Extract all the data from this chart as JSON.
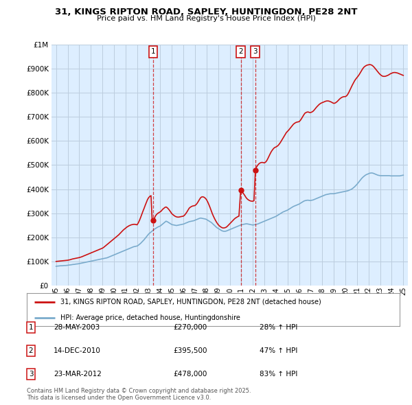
{
  "title": "31, KINGS RIPTON ROAD, SAPLEY, HUNTINGDON, PE28 2NT",
  "subtitle": "Price paid vs. HM Land Registry's House Price Index (HPI)",
  "legend_line1": "31, KINGS RIPTON ROAD, SAPLEY, HUNTINGDON, PE28 2NT (detached house)",
  "legend_line2": "HPI: Average price, detached house, Huntingdonshire",
  "footer": "Contains HM Land Registry data © Crown copyright and database right 2025.\nThis data is licensed under the Open Government Licence v3.0.",
  "sale_events": [
    {
      "num": 1,
      "date": "28-MAY-2003",
      "price": 270000,
      "pct": "28% ↑ HPI",
      "x": 2003.38
    },
    {
      "num": 2,
      "date": "14-DEC-2010",
      "price": 395500,
      "pct": "47% ↑ HPI",
      "x": 2010.95
    },
    {
      "num": 3,
      "date": "23-MAR-2012",
      "price": 478000,
      "pct": "83% ↑ HPI",
      "x": 2012.22
    }
  ],
  "hpi_color": "#7aabcc",
  "price_color": "#cc1111",
  "marker_color": "#cc1111",
  "background_color": "#ffffff",
  "chart_bg_color": "#ddeeff",
  "grid_color": "#bbccdd",
  "ylim": [
    0,
    1000000
  ],
  "xlim": [
    1994.6,
    2025.4
  ],
  "hpi_x": [
    1995.0,
    1995.1,
    1995.2,
    1995.3,
    1995.4,
    1995.5,
    1995.6,
    1995.7,
    1995.8,
    1995.9,
    1996.0,
    1996.1,
    1996.2,
    1996.3,
    1996.4,
    1996.5,
    1996.6,
    1996.7,
    1996.8,
    1996.9,
    1997.0,
    1997.1,
    1997.2,
    1997.3,
    1997.4,
    1997.5,
    1997.6,
    1997.7,
    1997.8,
    1997.9,
    1998.0,
    1998.1,
    1998.2,
    1998.3,
    1998.4,
    1998.5,
    1998.6,
    1998.7,
    1998.8,
    1998.9,
    1999.0,
    1999.1,
    1999.2,
    1999.3,
    1999.4,
    1999.5,
    1999.6,
    1999.7,
    1999.8,
    1999.9,
    2000.0,
    2000.1,
    2000.2,
    2000.3,
    2000.4,
    2000.5,
    2000.6,
    2000.7,
    2000.8,
    2000.9,
    2001.0,
    2001.1,
    2001.2,
    2001.3,
    2001.4,
    2001.5,
    2001.6,
    2001.7,
    2001.8,
    2001.9,
    2002.0,
    2002.1,
    2002.2,
    2002.3,
    2002.4,
    2002.5,
    2002.6,
    2002.7,
    2002.8,
    2002.9,
    2003.0,
    2003.1,
    2003.2,
    2003.3,
    2003.4,
    2003.5,
    2003.6,
    2003.7,
    2003.8,
    2003.9,
    2004.0,
    2004.1,
    2004.2,
    2004.3,
    2004.4,
    2004.5,
    2004.6,
    2004.7,
    2004.8,
    2004.9,
    2005.0,
    2005.1,
    2005.2,
    2005.3,
    2005.4,
    2005.5,
    2005.6,
    2005.7,
    2005.8,
    2005.9,
    2006.0,
    2006.1,
    2006.2,
    2006.3,
    2006.4,
    2006.5,
    2006.6,
    2006.7,
    2006.8,
    2006.9,
    2007.0,
    2007.1,
    2007.2,
    2007.3,
    2007.4,
    2007.5,
    2007.6,
    2007.7,
    2007.8,
    2007.9,
    2008.0,
    2008.1,
    2008.2,
    2008.3,
    2008.4,
    2008.5,
    2008.6,
    2008.7,
    2008.8,
    2008.9,
    2009.0,
    2009.1,
    2009.2,
    2009.3,
    2009.4,
    2009.5,
    2009.6,
    2009.7,
    2009.8,
    2009.9,
    2010.0,
    2010.1,
    2010.2,
    2010.3,
    2010.4,
    2010.5,
    2010.6,
    2010.7,
    2010.8,
    2010.9,
    2011.0,
    2011.1,
    2011.2,
    2011.3,
    2011.4,
    2011.5,
    2011.6,
    2011.7,
    2011.8,
    2011.9,
    2012.0,
    2012.1,
    2012.2,
    2012.3,
    2012.4,
    2012.5,
    2012.6,
    2012.7,
    2012.8,
    2012.9,
    2013.0,
    2013.1,
    2013.2,
    2013.3,
    2013.4,
    2013.5,
    2013.6,
    2013.7,
    2013.8,
    2013.9,
    2014.0,
    2014.1,
    2014.2,
    2014.3,
    2014.4,
    2014.5,
    2014.6,
    2014.7,
    2014.8,
    2014.9,
    2015.0,
    2015.1,
    2015.2,
    2015.3,
    2015.4,
    2015.5,
    2015.6,
    2015.7,
    2015.8,
    2015.9,
    2016.0,
    2016.1,
    2016.2,
    2016.3,
    2016.4,
    2016.5,
    2016.6,
    2016.7,
    2016.8,
    2016.9,
    2017.0,
    2017.1,
    2017.2,
    2017.3,
    2017.4,
    2017.5,
    2017.6,
    2017.7,
    2017.8,
    2017.9,
    2018.0,
    2018.1,
    2018.2,
    2018.3,
    2018.4,
    2018.5,
    2018.6,
    2018.7,
    2018.8,
    2018.9,
    2019.0,
    2019.1,
    2019.2,
    2019.3,
    2019.4,
    2019.5,
    2019.6,
    2019.7,
    2019.8,
    2019.9,
    2020.0,
    2020.1,
    2020.2,
    2020.3,
    2020.4,
    2020.5,
    2020.6,
    2020.7,
    2020.8,
    2020.9,
    2021.0,
    2021.1,
    2021.2,
    2021.3,
    2021.4,
    2021.5,
    2021.6,
    2021.7,
    2021.8,
    2021.9,
    2022.0,
    2022.1,
    2022.2,
    2022.3,
    2022.4,
    2022.5,
    2022.6,
    2022.7,
    2022.8,
    2022.9,
    2023.0,
    2023.1,
    2023.2,
    2023.3,
    2023.4,
    2023.5,
    2023.6,
    2023.7,
    2023.8,
    2023.9,
    2024.0,
    2024.1,
    2024.2,
    2024.3,
    2024.4,
    2024.5,
    2024.6,
    2024.7,
    2024.8,
    2024.9,
    2025.0
  ],
  "hpi_y": [
    80000,
    80500,
    81000,
    81500,
    82000,
    82000,
    82500,
    83000,
    83000,
    83500,
    84000,
    85000,
    85500,
    86000,
    87000,
    87500,
    88000,
    89000,
    89500,
    90000,
    91000,
    92000,
    93000,
    94000,
    95000,
    96000,
    97000,
    98000,
    99000,
    100000,
    101000,
    102000,
    103000,
    104000,
    105000,
    106000,
    107000,
    108000,
    109000,
    110000,
    111000,
    112000,
    113000,
    114000,
    115000,
    117000,
    119000,
    121000,
    123000,
    125000,
    127000,
    129000,
    131000,
    133000,
    135000,
    137000,
    139000,
    141000,
    143000,
    145000,
    147000,
    149000,
    151000,
    153000,
    155000,
    157000,
    159000,
    161000,
    162000,
    163000,
    164000,
    167000,
    171000,
    175000,
    180000,
    185000,
    190000,
    196000,
    202000,
    208000,
    214000,
    218000,
    222000,
    226000,
    230000,
    234000,
    237000,
    240000,
    243000,
    245000,
    247000,
    251000,
    255000,
    259000,
    263000,
    267000,
    265000,
    262000,
    259000,
    256000,
    253000,
    252000,
    251000,
    250000,
    249000,
    250000,
    251000,
    252000,
    253000,
    254000,
    255000,
    257000,
    259000,
    261000,
    263000,
    265000,
    266000,
    267000,
    268000,
    269000,
    271000,
    273000,
    275000,
    277000,
    279000,
    280000,
    279000,
    278000,
    277000,
    276000,
    274000,
    271000,
    268000,
    265000,
    262000,
    258000,
    253000,
    249000,
    244000,
    240000,
    237000,
    234000,
    231000,
    228000,
    226000,
    225000,
    225000,
    226000,
    228000,
    230000,
    232000,
    234000,
    236000,
    238000,
    240000,
    242000,
    244000,
    246000,
    248000,
    250000,
    252000,
    253000,
    254000,
    255000,
    256000,
    256000,
    255000,
    254000,
    253000,
    252000,
    251000,
    252000,
    253000,
    254000,
    255000,
    257000,
    259000,
    261000,
    263000,
    265000,
    267000,
    269000,
    271000,
    273000,
    275000,
    277000,
    279000,
    281000,
    283000,
    285000,
    287000,
    290000,
    293000,
    296000,
    299000,
    302000,
    305000,
    307000,
    309000,
    311000,
    313000,
    316000,
    319000,
    322000,
    325000,
    328000,
    330000,
    332000,
    334000,
    336000,
    338000,
    341000,
    344000,
    347000,
    350000,
    352000,
    353000,
    354000,
    354000,
    353000,
    353000,
    354000,
    355000,
    357000,
    359000,
    361000,
    363000,
    365000,
    367000,
    369000,
    371000,
    373000,
    375000,
    377000,
    378000,
    379000,
    380000,
    381000,
    381000,
    381000,
    381000,
    382000,
    383000,
    384000,
    385000,
    386000,
    387000,
    388000,
    389000,
    390000,
    391000,
    392000,
    393000,
    395000,
    397000,
    399000,
    402000,
    406000,
    410000,
    415000,
    420000,
    426000,
    432000,
    438000,
    444000,
    449000,
    453000,
    457000,
    460000,
    462000,
    464000,
    466000,
    467000,
    467000,
    466000,
    464000,
    462000,
    460000,
    458000,
    457000,
    456000,
    456000,
    456000,
    456000,
    456000,
    456000,
    456000,
    456000,
    456000,
    455000,
    455000,
    455000,
    455000,
    455000,
    455000,
    455000,
    455000,
    455000,
    456000,
    457000,
    458000
  ],
  "red_x": [
    1995.0,
    1995.1,
    1995.2,
    1995.3,
    1995.4,
    1995.5,
    1995.6,
    1995.7,
    1995.8,
    1995.9,
    1996.0,
    1996.1,
    1996.2,
    1996.3,
    1996.4,
    1996.5,
    1996.6,
    1996.7,
    1996.8,
    1996.9,
    1997.0,
    1997.1,
    1997.2,
    1997.3,
    1997.4,
    1997.5,
    1997.6,
    1997.7,
    1997.8,
    1997.9,
    1998.0,
    1998.1,
    1998.2,
    1998.3,
    1998.4,
    1998.5,
    1998.6,
    1998.7,
    1998.8,
    1998.9,
    1999.0,
    1999.1,
    1999.2,
    1999.3,
    1999.4,
    1999.5,
    1999.6,
    1999.7,
    1999.8,
    1999.9,
    2000.0,
    2000.1,
    2000.2,
    2000.3,
    2000.4,
    2000.5,
    2000.6,
    2000.7,
    2000.8,
    2000.9,
    2001.0,
    2001.1,
    2001.2,
    2001.3,
    2001.4,
    2001.5,
    2001.6,
    2001.7,
    2001.8,
    2001.9,
    2002.0,
    2002.1,
    2002.2,
    2002.3,
    2002.4,
    2002.5,
    2002.6,
    2002.7,
    2002.8,
    2002.9,
    2003.0,
    2003.1,
    2003.2,
    2003.3,
    2003.38,
    2003.5,
    2003.6,
    2003.7,
    2003.8,
    2003.9,
    2004.0,
    2004.1,
    2004.2,
    2004.3,
    2004.4,
    2004.5,
    2004.6,
    2004.7,
    2004.8,
    2004.9,
    2005.0,
    2005.1,
    2005.2,
    2005.3,
    2005.4,
    2005.5,
    2005.6,
    2005.7,
    2005.8,
    2005.9,
    2006.0,
    2006.1,
    2006.2,
    2006.3,
    2006.4,
    2006.5,
    2006.6,
    2006.7,
    2006.8,
    2006.9,
    2007.0,
    2007.1,
    2007.2,
    2007.3,
    2007.4,
    2007.5,
    2007.6,
    2007.7,
    2007.8,
    2007.9,
    2008.0,
    2008.1,
    2008.2,
    2008.3,
    2008.4,
    2008.5,
    2008.6,
    2008.7,
    2008.8,
    2008.9,
    2009.0,
    2009.1,
    2009.2,
    2009.3,
    2009.4,
    2009.5,
    2009.6,
    2009.7,
    2009.8,
    2009.9,
    2010.0,
    2010.1,
    2010.2,
    2010.3,
    2010.4,
    2010.5,
    2010.6,
    2010.7,
    2010.8,
    2010.95,
    2011.0,
    2011.1,
    2011.2,
    2011.3,
    2011.4,
    2011.5,
    2011.6,
    2011.7,
    2011.8,
    2011.9,
    2012.0,
    2012.1,
    2012.22,
    2012.3,
    2012.4,
    2012.5,
    2012.6,
    2012.7,
    2012.8,
    2012.9,
    2013.0,
    2013.1,
    2013.2,
    2013.3,
    2013.4,
    2013.5,
    2013.6,
    2013.7,
    2013.8,
    2013.9,
    2014.0,
    2014.1,
    2014.2,
    2014.3,
    2014.4,
    2014.5,
    2014.6,
    2014.7,
    2014.8,
    2014.9,
    2015.0,
    2015.1,
    2015.2,
    2015.3,
    2015.4,
    2015.5,
    2015.6,
    2015.7,
    2015.8,
    2015.9,
    2016.0,
    2016.1,
    2016.2,
    2016.3,
    2016.4,
    2016.5,
    2016.6,
    2016.7,
    2016.8,
    2016.9,
    2017.0,
    2017.1,
    2017.2,
    2017.3,
    2017.4,
    2017.5,
    2017.6,
    2017.7,
    2017.8,
    2017.9,
    2018.0,
    2018.1,
    2018.2,
    2018.3,
    2018.4,
    2018.5,
    2018.6,
    2018.7,
    2018.8,
    2018.9,
    2019.0,
    2019.1,
    2019.2,
    2019.3,
    2019.4,
    2019.5,
    2019.6,
    2019.7,
    2019.8,
    2019.9,
    2020.0,
    2020.1,
    2020.2,
    2020.3,
    2020.4,
    2020.5,
    2020.6,
    2020.7,
    2020.8,
    2020.9,
    2021.0,
    2021.1,
    2021.2,
    2021.3,
    2021.4,
    2021.5,
    2021.6,
    2021.7,
    2021.8,
    2021.9,
    2022.0,
    2022.1,
    2022.2,
    2022.3,
    2022.4,
    2022.5,
    2022.6,
    2022.7,
    2022.8,
    2022.9,
    2023.0,
    2023.1,
    2023.2,
    2023.3,
    2023.4,
    2023.5,
    2023.6,
    2023.7,
    2023.8,
    2023.9,
    2024.0,
    2024.1,
    2024.2,
    2024.3,
    2024.4,
    2024.5,
    2024.6,
    2024.7,
    2024.8,
    2024.9,
    2025.0
  ],
  "red_y": [
    100000,
    100500,
    101000,
    101500,
    102000,
    102500,
    103000,
    103500,
    104000,
    104500,
    105000,
    106000,
    107000,
    108500,
    110000,
    111000,
    112000,
    113000,
    114000,
    115000,
    116000,
    117500,
    119000,
    121000,
    123000,
    125000,
    127000,
    129000,
    131000,
    133000,
    135000,
    137000,
    139000,
    141000,
    143000,
    145000,
    147000,
    149000,
    151000,
    153000,
    155000,
    158000,
    162000,
    166000,
    170000,
    174000,
    178000,
    182000,
    186000,
    190000,
    194000,
    198000,
    202000,
    206000,
    210000,
    215000,
    220000,
    225000,
    230000,
    234000,
    238000,
    242000,
    245000,
    248000,
    250000,
    252000,
    253000,
    254000,
    254000,
    253000,
    252000,
    260000,
    270000,
    282000,
    295000,
    308000,
    320000,
    333000,
    345000,
    357000,
    365000,
    370000,
    373000,
    268000,
    270000,
    280000,
    290000,
    296000,
    300000,
    303000,
    306000,
    310000,
    316000,
    320000,
    324000,
    326000,
    323000,
    318000,
    312000,
    305000,
    298000,
    294000,
    290000,
    287000,
    285000,
    284000,
    284000,
    285000,
    286000,
    287000,
    288000,
    292000,
    298000,
    305000,
    313000,
    321000,
    325000,
    328000,
    330000,
    331000,
    332000,
    336000,
    342000,
    350000,
    358000,
    365000,
    368000,
    368000,
    366000,
    362000,
    356000,
    347000,
    336000,
    324000,
    311000,
    298000,
    287000,
    277000,
    268000,
    260000,
    253000,
    248000,
    244000,
    241000,
    239000,
    239000,
    240000,
    242000,
    246000,
    251000,
    256000,
    261000,
    266000,
    271000,
    276000,
    280000,
    283000,
    286000,
    288000,
    395500,
    392000,
    387000,
    381000,
    374000,
    366000,
    360000,
    356000,
    353000,
    351000,
    350000,
    350000,
    352000,
    478000,
    490000,
    498000,
    504000,
    508000,
    510000,
    511000,
    510000,
    509000,
    512000,
    518000,
    527000,
    537000,
    547000,
    556000,
    563000,
    569000,
    573000,
    575000,
    578000,
    582000,
    588000,
    595000,
    603000,
    611000,
    619000,
    627000,
    635000,
    640000,
    645000,
    651000,
    657000,
    663000,
    669000,
    673000,
    676000,
    678000,
    679000,
    680000,
    685000,
    692000,
    700000,
    708000,
    715000,
    718000,
    720000,
    720000,
    718000,
    718000,
    720000,
    723000,
    728000,
    734000,
    740000,
    745000,
    750000,
    754000,
    757000,
    759000,
    761000,
    763000,
    765000,
    766000,
    766000,
    765000,
    763000,
    761000,
    758000,
    756000,
    757000,
    760000,
    764000,
    769000,
    774000,
    778000,
    781000,
    783000,
    784000,
    784000,
    787000,
    793000,
    802000,
    812000,
    822000,
    832000,
    841000,
    850000,
    857000,
    863000,
    869000,
    876000,
    884000,
    892000,
    900000,
    906000,
    910000,
    913000,
    915000,
    916000,
    917000,
    916000,
    914000,
    910000,
    905000,
    899000,
    893000,
    887000,
    881000,
    876000,
    872000,
    869000,
    868000,
    868000,
    869000,
    871000,
    873000,
    876000,
    879000,
    881000,
    883000,
    884000,
    884000,
    883000,
    882000,
    880000,
    878000,
    876000,
    874000,
    872000
  ]
}
